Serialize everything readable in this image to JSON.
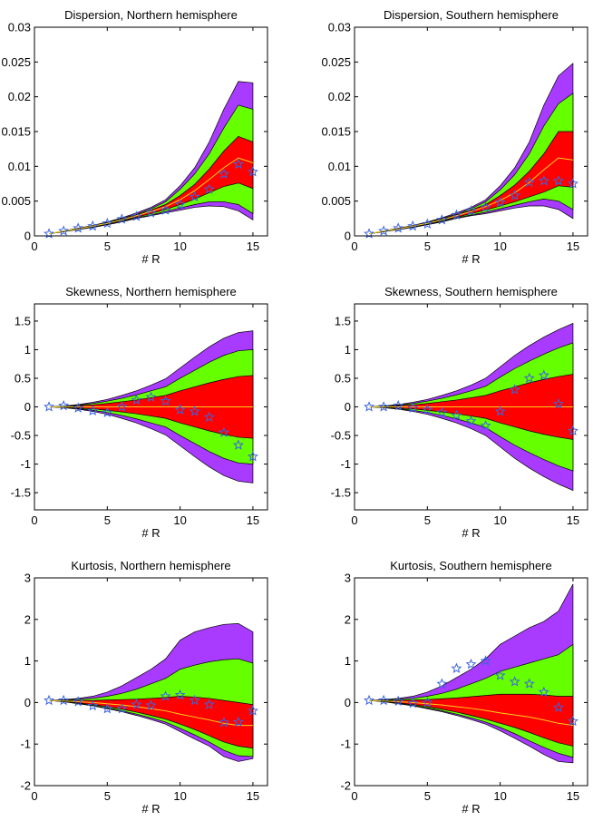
{
  "colors": {
    "outer": "#a83bff",
    "mid": "#66ff00",
    "inner": "#ff0000",
    "median": "#ffd21a",
    "marker": "#3b64e0",
    "edge": "#000000"
  },
  "chart_data": [
    {
      "type": "area",
      "title": "Dispersion, Northern hemisphere",
      "xlabel": "# R",
      "xlim": [
        0,
        16
      ],
      "ylim": [
        0,
        0.03
      ],
      "xticks": [
        "0",
        "5",
        "10",
        "15"
      ],
      "yticks": [
        "0",
        "0.005",
        "0.01",
        "0.015",
        "0.02",
        "0.025",
        "0.03"
      ],
      "ytick_values": [
        0,
        0.005,
        0.01,
        0.015,
        0.02,
        0.025,
        0.03
      ],
      "x": [
        1,
        2,
        3,
        4,
        5,
        6,
        7,
        8,
        9,
        10,
        11,
        12,
        13,
        14,
        15
      ],
      "bands": {
        "outer_upper": [
          0.0003,
          0.0007,
          0.0011,
          0.0015,
          0.002,
          0.0026,
          0.0033,
          0.0041,
          0.0052,
          0.0072,
          0.0098,
          0.0135,
          0.0182,
          0.0222,
          0.022
        ],
        "mid_upper": [
          0.0003,
          0.0007,
          0.0011,
          0.0014,
          0.0019,
          0.0025,
          0.0031,
          0.0039,
          0.0049,
          0.0067,
          0.0089,
          0.0118,
          0.0155,
          0.0188,
          0.0182
        ],
        "inner_upper": [
          0.0003,
          0.0007,
          0.0011,
          0.0014,
          0.0018,
          0.0024,
          0.003,
          0.0037,
          0.0045,
          0.0058,
          0.0074,
          0.0096,
          0.0122,
          0.0143,
          0.0135
        ],
        "median": [
          0.0003,
          0.0007,
          0.001,
          0.0014,
          0.0018,
          0.0023,
          0.0029,
          0.0035,
          0.0042,
          0.0052,
          0.0065,
          0.0081,
          0.0098,
          0.0112,
          0.0105
        ],
        "inner_lower": [
          0.0003,
          0.0006,
          0.001,
          0.0013,
          0.0017,
          0.0022,
          0.0027,
          0.0032,
          0.0038,
          0.0045,
          0.0053,
          0.0062,
          0.0071,
          0.0076,
          0.0068
        ],
        "mid_lower": [
          0.0003,
          0.0006,
          0.001,
          0.0013,
          0.0017,
          0.0021,
          0.0026,
          0.003,
          0.0035,
          0.004,
          0.0045,
          0.0049,
          0.0049,
          0.0045,
          0.0032
        ],
        "outer_lower": [
          0.0003,
          0.0006,
          0.0009,
          0.0012,
          0.0016,
          0.002,
          0.0025,
          0.0029,
          0.0033,
          0.0037,
          0.0041,
          0.0043,
          0.0042,
          0.0036,
          0.0023
        ]
      },
      "observed": [
        0.0003,
        0.0007,
        0.0011,
        0.0014,
        0.0018,
        0.0024,
        0.0028,
        0.0033,
        0.0037,
        0.0045,
        0.0056,
        0.0067,
        0.0089,
        0.0103,
        0.0092
      ]
    },
    {
      "type": "area",
      "title": "Dispersion, Southern hemisphere",
      "xlabel": "# R",
      "xlim": [
        0,
        16
      ],
      "ylim": [
        0,
        0.03
      ],
      "xticks": [
        "0",
        "5",
        "10",
        "15"
      ],
      "yticks": [
        "0",
        "0.005",
        "0.01",
        "0.015",
        "0.02",
        "0.025",
        "0.03"
      ],
      "ytick_values": [
        0,
        0.005,
        0.01,
        0.015,
        0.02,
        0.025,
        0.03
      ],
      "x": [
        1,
        2,
        3,
        4,
        5,
        6,
        7,
        8,
        9,
        10,
        11,
        12,
        13,
        14,
        15
      ],
      "bands": {
        "outer_upper": [
          0.0003,
          0.0007,
          0.0011,
          0.0015,
          0.002,
          0.0026,
          0.0033,
          0.0041,
          0.0052,
          0.0072,
          0.0098,
          0.0135,
          0.0188,
          0.023,
          0.0248
        ],
        "mid_upper": [
          0.0003,
          0.0007,
          0.0011,
          0.0014,
          0.0019,
          0.0025,
          0.0031,
          0.0039,
          0.0049,
          0.0066,
          0.0088,
          0.0118,
          0.0158,
          0.019,
          0.0205
        ],
        "inner_upper": [
          0.0003,
          0.0007,
          0.0011,
          0.0014,
          0.0018,
          0.0024,
          0.003,
          0.0037,
          0.0045,
          0.0058,
          0.0073,
          0.0093,
          0.0118,
          0.015,
          0.015
        ],
        "median": [
          0.0003,
          0.0007,
          0.001,
          0.0014,
          0.0018,
          0.0023,
          0.0029,
          0.0035,
          0.0042,
          0.0051,
          0.0062,
          0.0077,
          0.0095,
          0.0112,
          0.0109
        ],
        "inner_lower": [
          0.0003,
          0.0006,
          0.001,
          0.0013,
          0.0017,
          0.0022,
          0.0027,
          0.0032,
          0.0037,
          0.0043,
          0.0049,
          0.0056,
          0.0063,
          0.0072,
          0.007
        ],
        "mid_lower": [
          0.0003,
          0.0006,
          0.001,
          0.0013,
          0.0017,
          0.0021,
          0.0026,
          0.003,
          0.0034,
          0.0039,
          0.0044,
          0.0049,
          0.0053,
          0.005,
          0.0038
        ],
        "outer_lower": [
          0.0003,
          0.0006,
          0.0009,
          0.0012,
          0.0016,
          0.002,
          0.0025,
          0.0029,
          0.0032,
          0.0036,
          0.004,
          0.0043,
          0.0043,
          0.0038,
          0.0025
        ]
      },
      "observed": [
        0.0003,
        0.0007,
        0.0011,
        0.0014,
        0.0017,
        0.0023,
        0.003,
        0.0036,
        0.0041,
        0.0048,
        0.0058,
        0.0077,
        0.0079,
        0.0079,
        0.0075
      ]
    },
    {
      "type": "area",
      "title": "Skewness, Northern hemisphere",
      "xlabel": "# R",
      "xlim": [
        0,
        16
      ],
      "ylim": [
        -1.8,
        1.8
      ],
      "xticks": [
        "0",
        "5",
        "10",
        "15"
      ],
      "yticks": [
        "-1.5",
        "-1",
        "-0.5",
        "0",
        "0.5",
        "1",
        "1.5"
      ],
      "ytick_values": [
        -1.5,
        -1,
        -0.5,
        0,
        0.5,
        1,
        1.5
      ],
      "x": [
        1,
        2,
        3,
        4,
        5,
        6,
        7,
        8,
        9,
        10,
        11,
        12,
        13,
        14,
        15
      ],
      "bands": {
        "outer_upper": [
          0,
          0.015,
          0.04,
          0.08,
          0.13,
          0.2,
          0.28,
          0.38,
          0.49,
          0.68,
          0.87,
          1.05,
          1.2,
          1.3,
          1.33
        ],
        "mid_upper": [
          0,
          0.012,
          0.03,
          0.06,
          0.1,
          0.15,
          0.21,
          0.28,
          0.35,
          0.5,
          0.64,
          0.78,
          0.9,
          0.98,
          1.0
        ],
        "inner_upper": [
          0,
          0.007,
          0.02,
          0.035,
          0.06,
          0.09,
          0.12,
          0.16,
          0.2,
          0.28,
          0.35,
          0.42,
          0.48,
          0.53,
          0.55
        ],
        "median": [
          0,
          0,
          0,
          0,
          0,
          0,
          0,
          0,
          0,
          0,
          0,
          0,
          0,
          0,
          0
        ],
        "inner_lower": [
          0,
          -0.007,
          -0.02,
          -0.035,
          -0.06,
          -0.09,
          -0.12,
          -0.16,
          -0.2,
          -0.28,
          -0.35,
          -0.42,
          -0.48,
          -0.53,
          -0.55
        ],
        "mid_lower": [
          0,
          -0.012,
          -0.03,
          -0.06,
          -0.1,
          -0.15,
          -0.21,
          -0.28,
          -0.35,
          -0.5,
          -0.64,
          -0.78,
          -0.9,
          -0.98,
          -1.0
        ],
        "outer_lower": [
          0,
          -0.015,
          -0.04,
          -0.08,
          -0.13,
          -0.2,
          -0.28,
          -0.38,
          -0.49,
          -0.68,
          -0.87,
          -1.05,
          -1.2,
          -1.3,
          -1.33
        ]
      },
      "observed": [
        0.0,
        0.02,
        -0.02,
        -0.07,
        -0.1,
        0.0,
        0.12,
        0.17,
        0.1,
        -0.05,
        -0.08,
        -0.18,
        -0.45,
        -0.67,
        -0.87
      ]
    },
    {
      "type": "area",
      "title": "Skewness, Southern hemisphere",
      "xlabel": "# R",
      "xlim": [
        0,
        16
      ],
      "ylim": [
        -1.8,
        1.8
      ],
      "xticks": [
        "0",
        "5",
        "10",
        "15"
      ],
      "yticks": [
        "-1.5",
        "-1",
        "-0.5",
        "0",
        "0.5",
        "1",
        "1.5"
      ],
      "ytick_values": [
        -1.5,
        -1,
        -0.5,
        0,
        0.5,
        1,
        1.5
      ],
      "x": [
        1,
        2,
        3,
        4,
        5,
        6,
        7,
        8,
        9,
        10,
        11,
        12,
        13,
        14,
        15
      ],
      "bands": {
        "outer_upper": [
          0,
          0.015,
          0.04,
          0.08,
          0.13,
          0.2,
          0.28,
          0.38,
          0.5,
          0.7,
          0.9,
          1.07,
          1.22,
          1.35,
          1.46
        ],
        "mid_upper": [
          0,
          0.012,
          0.03,
          0.06,
          0.1,
          0.15,
          0.21,
          0.28,
          0.36,
          0.52,
          0.67,
          0.8,
          0.92,
          1.03,
          1.12
        ],
        "inner_upper": [
          0,
          0.007,
          0.02,
          0.035,
          0.06,
          0.09,
          0.12,
          0.16,
          0.2,
          0.28,
          0.35,
          0.42,
          0.48,
          0.53,
          0.57
        ],
        "median": [
          0,
          0,
          0,
          0,
          0,
          0,
          0,
          0,
          0,
          0,
          0,
          0,
          0,
          0,
          0
        ],
        "inner_lower": [
          0,
          -0.007,
          -0.02,
          -0.035,
          -0.06,
          -0.09,
          -0.12,
          -0.16,
          -0.2,
          -0.28,
          -0.35,
          -0.42,
          -0.48,
          -0.53,
          -0.57
        ],
        "mid_lower": [
          0,
          -0.012,
          -0.03,
          -0.06,
          -0.1,
          -0.15,
          -0.21,
          -0.28,
          -0.36,
          -0.52,
          -0.67,
          -0.8,
          -0.92,
          -1.03,
          -1.12
        ],
        "outer_lower": [
          0,
          -0.015,
          -0.04,
          -0.08,
          -0.13,
          -0.2,
          -0.28,
          -0.38,
          -0.5,
          -0.7,
          -0.9,
          -1.07,
          -1.22,
          -1.35,
          -1.46
        ]
      },
      "observed": [
        0.0,
        0.0,
        0.02,
        -0.02,
        -0.05,
        -0.1,
        -0.15,
        -0.25,
        -0.33,
        -0.08,
        0.3,
        0.5,
        0.55,
        0.05,
        -0.42
      ]
    },
    {
      "type": "area",
      "title": "Kurtosis, Northern hemisphere",
      "xlabel": "# R",
      "xlim": [
        0,
        16
      ],
      "ylim": [
        -2,
        3
      ],
      "xticks": [
        "0",
        "5",
        "10",
        "15"
      ],
      "yticks": [
        "-2",
        "-1",
        "0",
        "1",
        "2",
        "3"
      ],
      "ytick_values": [
        -2,
        -1,
        0,
        1,
        2,
        3
      ],
      "x": [
        1,
        2,
        3,
        4,
        5,
        6,
        7,
        8,
        9,
        10,
        11,
        12,
        13,
        14,
        15
      ],
      "bands": {
        "outer_upper": [
          0.05,
          0.07,
          0.1,
          0.15,
          0.25,
          0.4,
          0.6,
          0.8,
          1.05,
          1.5,
          1.7,
          1.8,
          1.88,
          1.9,
          1.7
        ],
        "mid_upper": [
          0.05,
          0.06,
          0.08,
          0.1,
          0.15,
          0.22,
          0.32,
          0.45,
          0.58,
          0.8,
          0.9,
          0.98,
          1.03,
          1.05,
          0.95
        ],
        "inner_upper": [
          0.05,
          0.05,
          0.05,
          0.05,
          0.06,
          0.07,
          0.08,
          0.1,
          0.12,
          0.15,
          0.13,
          0.1,
          0.05,
          0.0,
          -0.05
        ],
        "median": [
          0.05,
          0.04,
          0.02,
          0.0,
          -0.03,
          -0.06,
          -0.1,
          -0.15,
          -0.2,
          -0.28,
          -0.35,
          -0.42,
          -0.5,
          -0.55,
          -0.55
        ],
        "inner_lower": [
          0.05,
          0.03,
          -0.01,
          -0.05,
          -0.1,
          -0.16,
          -0.23,
          -0.31,
          -0.4,
          -0.52,
          -0.65,
          -0.8,
          -0.95,
          -1.05,
          -1.1
        ],
        "mid_lower": [
          0.05,
          0.02,
          -0.02,
          -0.07,
          -0.13,
          -0.2,
          -0.28,
          -0.37,
          -0.47,
          -0.62,
          -0.78,
          -0.95,
          -1.15,
          -1.28,
          -1.3
        ],
        "outer_lower": [
          0.05,
          0.02,
          -0.03,
          -0.08,
          -0.15,
          -0.22,
          -0.31,
          -0.41,
          -0.52,
          -0.7,
          -0.88,
          -1.05,
          -1.3,
          -1.42,
          -1.35
        ]
      },
      "observed": [
        0.05,
        0.05,
        0.02,
        -0.08,
        -0.15,
        -0.15,
        -0.05,
        -0.07,
        0.15,
        0.18,
        0.05,
        -0.05,
        -0.48,
        -0.47,
        -0.2
      ]
    },
    {
      "type": "area",
      "title": "Kurtosis, Southern hemisphere",
      "xlabel": "# R",
      "xlim": [
        0,
        16
      ],
      "ylim": [
        -2,
        3
      ],
      "xticks": [
        "0",
        "5",
        "10",
        "15"
      ],
      "yticks": [
        "-2",
        "-1",
        "0",
        "1",
        "2",
        "3"
      ],
      "ytick_values": [
        -2,
        -1,
        0,
        1,
        2,
        3
      ],
      "x": [
        1,
        2,
        3,
        4,
        5,
        6,
        7,
        8,
        9,
        10,
        11,
        12,
        13,
        14,
        15
      ],
      "bands": {
        "outer_upper": [
          0.05,
          0.07,
          0.1,
          0.15,
          0.25,
          0.4,
          0.6,
          0.8,
          1.05,
          1.4,
          1.6,
          1.8,
          1.95,
          2.2,
          2.85
        ],
        "mid_upper": [
          0.05,
          0.06,
          0.08,
          0.1,
          0.15,
          0.22,
          0.32,
          0.45,
          0.58,
          0.75,
          0.85,
          0.95,
          1.05,
          1.15,
          1.4
        ],
        "inner_upper": [
          0.05,
          0.05,
          0.05,
          0.06,
          0.07,
          0.09,
          0.11,
          0.14,
          0.17,
          0.2,
          0.2,
          0.2,
          0.18,
          0.15,
          0.15
        ],
        "median": [
          0.05,
          0.04,
          0.02,
          0.0,
          -0.03,
          -0.06,
          -0.1,
          -0.14,
          -0.19,
          -0.25,
          -0.3,
          -0.35,
          -0.42,
          -0.5,
          -0.55
        ],
        "inner_lower": [
          0.05,
          0.03,
          -0.01,
          -0.05,
          -0.1,
          -0.16,
          -0.23,
          -0.31,
          -0.4,
          -0.5,
          -0.6,
          -0.72,
          -0.85,
          -0.97,
          -1.05
        ],
        "mid_lower": [
          0.05,
          0.02,
          -0.02,
          -0.07,
          -0.13,
          -0.2,
          -0.28,
          -0.37,
          -0.47,
          -0.6,
          -0.75,
          -0.92,
          -1.08,
          -1.22,
          -1.32
        ],
        "outer_lower": [
          0.05,
          0.02,
          -0.03,
          -0.08,
          -0.15,
          -0.22,
          -0.31,
          -0.41,
          -0.52,
          -0.68,
          -0.86,
          -1.05,
          -1.25,
          -1.42,
          -1.45
        ]
      },
      "observed": [
        0.05,
        0.05,
        0.03,
        -0.02,
        0.0,
        0.45,
        0.82,
        0.92,
        1.0,
        0.65,
        0.5,
        0.45,
        0.25,
        -0.12,
        -0.45
      ]
    }
  ]
}
